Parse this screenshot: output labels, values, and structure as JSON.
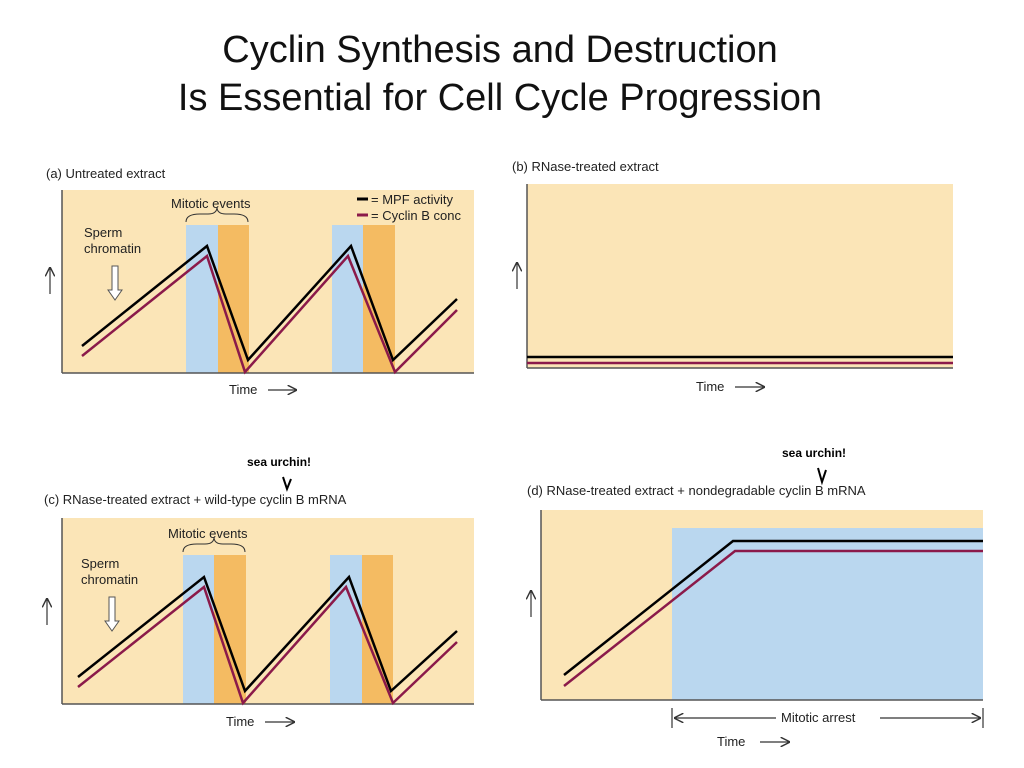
{
  "title": {
    "line1": "Cyclin Synthesis and Destruction",
    "line2": "Is Essential for Cell Cycle Progression"
  },
  "legend": {
    "mpf": "= MPF activity",
    "cyclin": "= Cyclin B conc",
    "mpf_color": "#000000",
    "cyclin_color": "#8b1a4a"
  },
  "colors": {
    "panel_bg": "#fbe5b7",
    "mitotic_blue": "#bad7ef",
    "mitotic_orange": "#f4bb62"
  },
  "panels": {
    "a": {
      "label": "(a)  Untreated extract",
      "mitotic_events": "Mitotic events",
      "sperm_chromatin_line1": "Sperm",
      "sperm_chromatin_line2": "chromatin",
      "time_label": "Time"
    },
    "b": {
      "label": "(b)  RNase-treated extract",
      "time_label": "Time"
    },
    "c": {
      "label": "(c)  RNase-treated extract + wild-type cyclin B mRNA",
      "mitotic_events": "Mitotic events",
      "sperm_chromatin_line1": "Sperm",
      "sperm_chromatin_line2": "chromatin",
      "time_label": "Time",
      "annotation": "sea urchin!"
    },
    "d": {
      "label": "(d)  RNase-treated extract + nondegradable cyclin B mRNA",
      "mitotic_arrest": "Mitotic arrest",
      "time_label": "Time",
      "annotation": "sea urchin!"
    }
  }
}
